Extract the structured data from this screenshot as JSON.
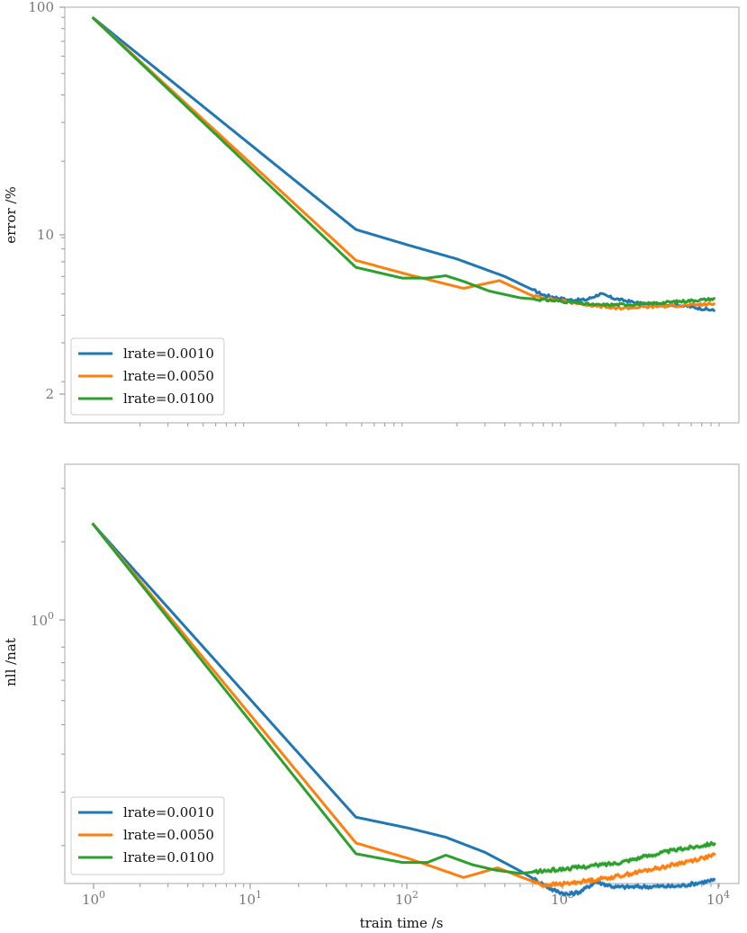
{
  "chart_data": [
    {
      "type": "line",
      "xscale": "log",
      "yscale": "log",
      "xlim": [
        0.67,
        12000
      ],
      "ylim": [
        1.3,
        100
      ],
      "xlabel": "",
      "ylabel": "error /%",
      "yticks": [
        {
          "value": 100,
          "label": "100"
        },
        {
          "value": 10,
          "label": "10"
        },
        {
          "value": 2,
          "label": "2"
        }
      ],
      "legend": "bottom-left",
      "series": [
        {
          "name": "lrate=0.0010",
          "color": "#1f77b4",
          "shade": false,
          "points": [
            [
              1,
              90
            ],
            [
              46,
              9.8
            ],
            [
              100,
              8.3
            ],
            [
              200,
              7.2
            ],
            [
              400,
              6.0
            ],
            [
              700,
              4.95
            ],
            [
              1000,
              4.7
            ],
            [
              1300,
              4.7
            ],
            [
              1600,
              5.0
            ],
            [
              2000,
              4.75
            ],
            [
              3000,
              4.5
            ],
            [
              5000,
              4.45
            ],
            [
              8500,
              4.2
            ]
          ]
        },
        {
          "name": "lrate=0.0050",
          "color": "#ff7f0e",
          "shade": false,
          "points": [
            [
              1,
              90
            ],
            [
              46,
              7.1
            ],
            [
              100,
              6.1
            ],
            [
              220,
              5.3
            ],
            [
              370,
              5.75
            ],
            [
              600,
              4.9
            ],
            [
              1000,
              4.6
            ],
            [
              2000,
              4.3
            ],
            [
              4000,
              4.4
            ],
            [
              8500,
              4.5
            ]
          ]
        },
        {
          "name": "lrate=0.0100",
          "color": "#2ca02c",
          "shade": false,
          "points": [
            [
              1,
              90
            ],
            [
              46,
              6.6
            ],
            [
              90,
              5.9
            ],
            [
              130,
              5.9
            ],
            [
              170,
              6.05
            ],
            [
              220,
              5.7
            ],
            [
              320,
              5.15
            ],
            [
              500,
              4.8
            ],
            [
              1000,
              4.6
            ],
            [
              1500,
              4.45
            ],
            [
              3000,
              4.5
            ],
            [
              8500,
              4.75
            ]
          ]
        }
      ],
      "legend_entries": [
        "lrate=0.0010",
        "lrate=0.0050",
        "lrate=0.0100"
      ]
    },
    {
      "type": "line",
      "xscale": "log",
      "yscale": "log",
      "xlim": [
        0.67,
        12000
      ],
      "ylim": [
        0.15,
        3.6
      ],
      "xlabel": "train time /s",
      "ylabel": "nll /nat",
      "xticks": [
        {
          "value": 1,
          "base": "10",
          "exp": "0"
        },
        {
          "value": 10,
          "base": "10",
          "exp": "1"
        },
        {
          "value": 100,
          "base": "10",
          "exp": "2"
        },
        {
          "value": 1000,
          "base": "10",
          "exp": "3"
        },
        {
          "value": 10000,
          "base": "10",
          "exp": "4"
        }
      ],
      "yticks": [
        {
          "value": 1,
          "base": "10",
          "exp": "0"
        }
      ],
      "legend": "bottom-left",
      "series": [
        {
          "name": "lrate=0.0010",
          "color": "#1f77b4",
          "shade": true,
          "points": [
            [
              1,
              2.3
            ],
            [
              46,
              0.248
            ],
            [
              100,
              0.228
            ],
            [
              170,
              0.213
            ],
            [
              300,
              0.19
            ],
            [
              500,
              0.165
            ],
            [
              800,
              0.143
            ],
            [
              1000,
              0.138
            ],
            [
              1200,
              0.141
            ],
            [
              1500,
              0.152
            ],
            [
              2000,
              0.146
            ],
            [
              5000,
              0.147
            ],
            [
              8500,
              0.154
            ]
          ]
        },
        {
          "name": "lrate=0.0050",
          "color": "#ff7f0e",
          "shade": true,
          "points": [
            [
              1,
              2.3
            ],
            [
              46,
              0.204
            ],
            [
              100,
              0.181
            ],
            [
              220,
              0.157
            ],
            [
              360,
              0.169
            ],
            [
              500,
              0.158
            ],
            [
              700,
              0.148
            ],
            [
              1000,
              0.15
            ],
            [
              2000,
              0.158
            ],
            [
              4000,
              0.17
            ],
            [
              8500,
              0.186
            ]
          ]
        },
        {
          "name": "lrate=0.0100",
          "color": "#2ca02c",
          "shade": true,
          "points": [
            [
              1,
              2.3
            ],
            [
              46,
              0.188
            ],
            [
              90,
              0.176
            ],
            [
              130,
              0.176
            ],
            [
              170,
              0.186
            ],
            [
              250,
              0.173
            ],
            [
              350,
              0.166
            ],
            [
              500,
              0.162
            ],
            [
              800,
              0.166
            ],
            [
              1000,
              0.168
            ],
            [
              2000,
              0.175
            ],
            [
              4000,
              0.19
            ],
            [
              8500,
              0.204
            ]
          ]
        }
      ],
      "legend_entries": [
        "lrate=0.0010",
        "lrate=0.0050",
        "lrate=0.0100"
      ]
    }
  ]
}
